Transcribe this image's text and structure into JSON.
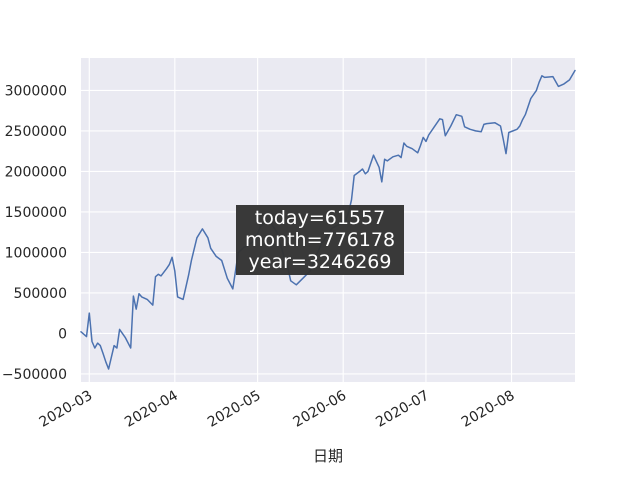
{
  "chart_data": {
    "type": "line",
    "xlabel": "日期",
    "ylabel": "",
    "x_start": "2020-02-27",
    "x_end": "2020-08-24",
    "xlim": [
      "2020-02-27",
      "2020-08-24"
    ],
    "ylim": [
      -600000,
      3400000
    ],
    "grid": true,
    "x_tick_labels": [
      "2020-03",
      "2020-04",
      "2020-05",
      "2020-06",
      "2020-07",
      "2020-08"
    ],
    "x_tick_dates": [
      "2020-03-01",
      "2020-04-01",
      "2020-05-01",
      "2020-06-01",
      "2020-07-01",
      "2020-08-01"
    ],
    "y_ticks": [
      -500000,
      0,
      500000,
      1000000,
      1500000,
      2000000,
      2500000,
      3000000
    ],
    "y_tick_labels": [
      "−500000",
      "0",
      "500000",
      "1000000",
      "1500000",
      "2000000",
      "2500000",
      "3000000"
    ],
    "line_color": "#4c72b0",
    "series": [
      {
        "x": [
          "2020-02-27",
          "2020-02-29",
          "2020-03-01",
          "2020-03-02",
          "2020-03-03",
          "2020-03-04",
          "2020-03-05",
          "2020-03-06",
          "2020-03-07",
          "2020-03-08",
          "2020-03-10",
          "2020-03-11",
          "2020-03-12",
          "2020-03-13",
          "2020-03-14",
          "2020-03-16",
          "2020-03-17",
          "2020-03-18",
          "2020-03-19",
          "2020-03-20",
          "2020-03-22",
          "2020-03-24",
          "2020-03-25",
          "2020-03-26",
          "2020-03-27",
          "2020-03-29",
          "2020-03-30",
          "2020-03-31",
          "2020-04-01",
          "2020-04-02",
          "2020-04-04",
          "2020-04-06",
          "2020-04-07",
          "2020-04-09",
          "2020-04-11",
          "2020-04-13",
          "2020-04-14",
          "2020-04-15",
          "2020-04-16",
          "2020-04-18",
          "2020-04-20",
          "2020-04-22",
          "2020-04-24",
          "2020-04-26",
          "2020-04-28",
          "2020-04-30",
          "2020-05-02",
          "2020-05-05",
          "2020-05-08",
          "2020-05-11",
          "2020-05-12",
          "2020-05-13",
          "2020-05-15",
          "2020-05-18",
          "2020-05-20",
          "2020-05-24",
          "2020-05-28",
          "2020-05-31",
          "2020-06-01",
          "2020-06-02",
          "2020-06-03",
          "2020-06-04",
          "2020-06-05",
          "2020-06-07",
          "2020-06-08",
          "2020-06-09",
          "2020-06-10",
          "2020-06-12",
          "2020-06-14",
          "2020-06-15",
          "2020-06-16",
          "2020-06-17",
          "2020-06-19",
          "2020-06-21",
          "2020-06-22",
          "2020-06-23",
          "2020-06-24",
          "2020-06-26",
          "2020-06-28",
          "2020-06-29",
          "2020-06-30",
          "2020-07-01",
          "2020-07-02",
          "2020-07-04",
          "2020-07-06",
          "2020-07-07",
          "2020-07-08",
          "2020-07-10",
          "2020-07-12",
          "2020-07-14",
          "2020-07-15",
          "2020-07-17",
          "2020-07-19",
          "2020-07-21",
          "2020-07-22",
          "2020-07-23",
          "2020-07-26",
          "2020-07-28",
          "2020-07-29",
          "2020-07-30",
          "2020-07-31",
          "2020-08-03",
          "2020-08-04",
          "2020-08-05",
          "2020-08-06",
          "2020-08-08",
          "2020-08-10",
          "2020-08-11",
          "2020-08-12",
          "2020-08-13",
          "2020-08-16",
          "2020-08-18",
          "2020-08-20",
          "2020-08-22",
          "2020-08-24"
        ],
        "values": [
          20000,
          -40000,
          250000,
          -100000,
          -180000,
          -120000,
          -150000,
          -250000,
          -350000,
          -440000,
          -150000,
          -180000,
          50000,
          0,
          -50000,
          -180000,
          460000,
          300000,
          490000,
          450000,
          420000,
          350000,
          700000,
          730000,
          710000,
          800000,
          850000,
          940000,
          770000,
          450000,
          420000,
          720000,
          900000,
          1180000,
          1290000,
          1180000,
          1050000,
          1000000,
          950000,
          900000,
          680000,
          550000,
          1000000,
          1060000,
          1100000,
          1150000,
          1320000,
          1400000,
          1250000,
          900000,
          800000,
          650000,
          600000,
          700000,
          770000,
          1100000,
          1300000,
          1350000,
          1400000,
          1400000,
          1500000,
          1650000,
          1950000,
          2000000,
          2030000,
          1970000,
          2000000,
          2200000,
          2050000,
          1870000,
          2150000,
          2130000,
          2180000,
          2200000,
          2170000,
          2350000,
          2310000,
          2280000,
          2230000,
          2320000,
          2420000,
          2370000,
          2450000,
          2550000,
          2650000,
          2640000,
          2440000,
          2560000,
          2700000,
          2680000,
          2550000,
          2520000,
          2500000,
          2490000,
          2580000,
          2590000,
          2600000,
          2560000,
          2400000,
          2220000,
          2480000,
          2520000,
          2560000,
          2640000,
          2700000,
          2900000,
          3000000,
          3100000,
          3180000,
          3160000,
          3170000,
          3050000,
          3080000,
          3130000,
          3246269
        ]
      }
    ],
    "tooltip": {
      "lines": [
        "today=61557",
        "month=776178",
        "year=3246269"
      ],
      "bg": "#333333",
      "fg": "#ffffff"
    }
  }
}
